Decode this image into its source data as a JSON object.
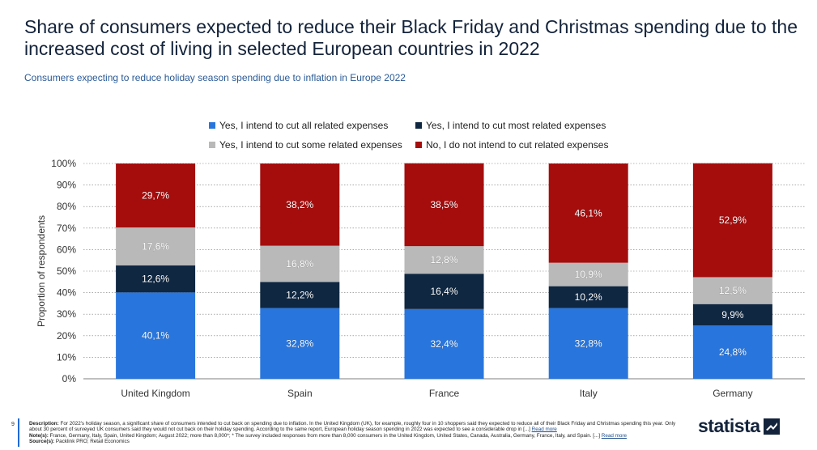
{
  "title": "Share of consumers expected to reduce their Black Friday and Christmas spending due to the increased cost of living in selected European countries in 2022",
  "subtitle": "Consumers expecting to reduce holiday season spending due to inflation in Europe 2022",
  "footer": {
    "page_number": "9",
    "description_label": "Description:",
    "description_text": "For 2022's holiday season, a significant share of consumers intended to cut back on spending due to inflation. In the United Kingdom (UK), for example, roughly four in 10 shoppers said they expected to reduce all of their Black Friday and Christmas spending this year. Only about 30 percent of surveyed UK consumers said they would not cut back on their holiday spending. According to the same report, European holiday season spending in 2022 was expected to see a considerable drop in [...]",
    "description_link": "Read more",
    "notes_label": "Note(s):",
    "notes_text": "France, Germany, Italy, Spain, United Kingdom; August 2022; more than 8,000*; * The survey included responses from more than 8,000 consumers in the United Kingdom, United States, Canada, Australia, Germany, France, Italy, and Spain. [...]",
    "notes_link": "Read more",
    "sources_label": "Source(s):",
    "sources_text": "Packlink PRO; Retail Economics"
  },
  "logo_text": "statista",
  "chart_data": {
    "type": "bar",
    "stacked": true,
    "categories": [
      "United Kingdom",
      "Spain",
      "France",
      "Italy",
      "Germany"
    ],
    "series": [
      {
        "name": "Yes, I intend to cut all related expenses",
        "color": "#2876dd",
        "values": [
          40.1,
          32.8,
          32.4,
          32.8,
          24.8
        ],
        "labels": [
          "40,1%",
          "32,8%",
          "32,4%",
          "32,8%",
          "24,8%"
        ],
        "label_color": "#ffffff"
      },
      {
        "name": "Yes, I intend to cut most related expenses",
        "color": "#0f2741",
        "values": [
          12.6,
          12.2,
          16.4,
          10.2,
          9.9
        ],
        "labels": [
          "12,6%",
          "12,2%",
          "16,4%",
          "10,2%",
          "9,9%"
        ],
        "label_color": "#ffffff"
      },
      {
        "name": "Yes, I intend to cut some related expenses",
        "color": "#b9b9b9",
        "values": [
          17.6,
          16.8,
          12.8,
          10.9,
          12.5
        ],
        "labels": [
          "17,6%",
          "16,8%",
          "12,8%",
          "10,9%",
          "12,5%"
        ],
        "label_color": "#ffffff"
      },
      {
        "name": "No, I do not intend to cut related expenses",
        "color": "#a50d0d",
        "values": [
          29.7,
          38.2,
          38.5,
          46.1,
          52.9
        ],
        "labels": [
          "29,7%",
          "38,2%",
          "38,5%",
          "46,1%",
          "52,9%"
        ],
        "label_color": "#ffffff"
      }
    ],
    "ylabel": "Proportion of respondents",
    "xlabel": "",
    "ylim": [
      0,
      100
    ],
    "yticks": [
      "0%",
      "10%",
      "20%",
      "30%",
      "40%",
      "50%",
      "60%",
      "70%",
      "80%",
      "90%",
      "100%"
    ],
    "grid": true,
    "legend_position": "top"
  }
}
